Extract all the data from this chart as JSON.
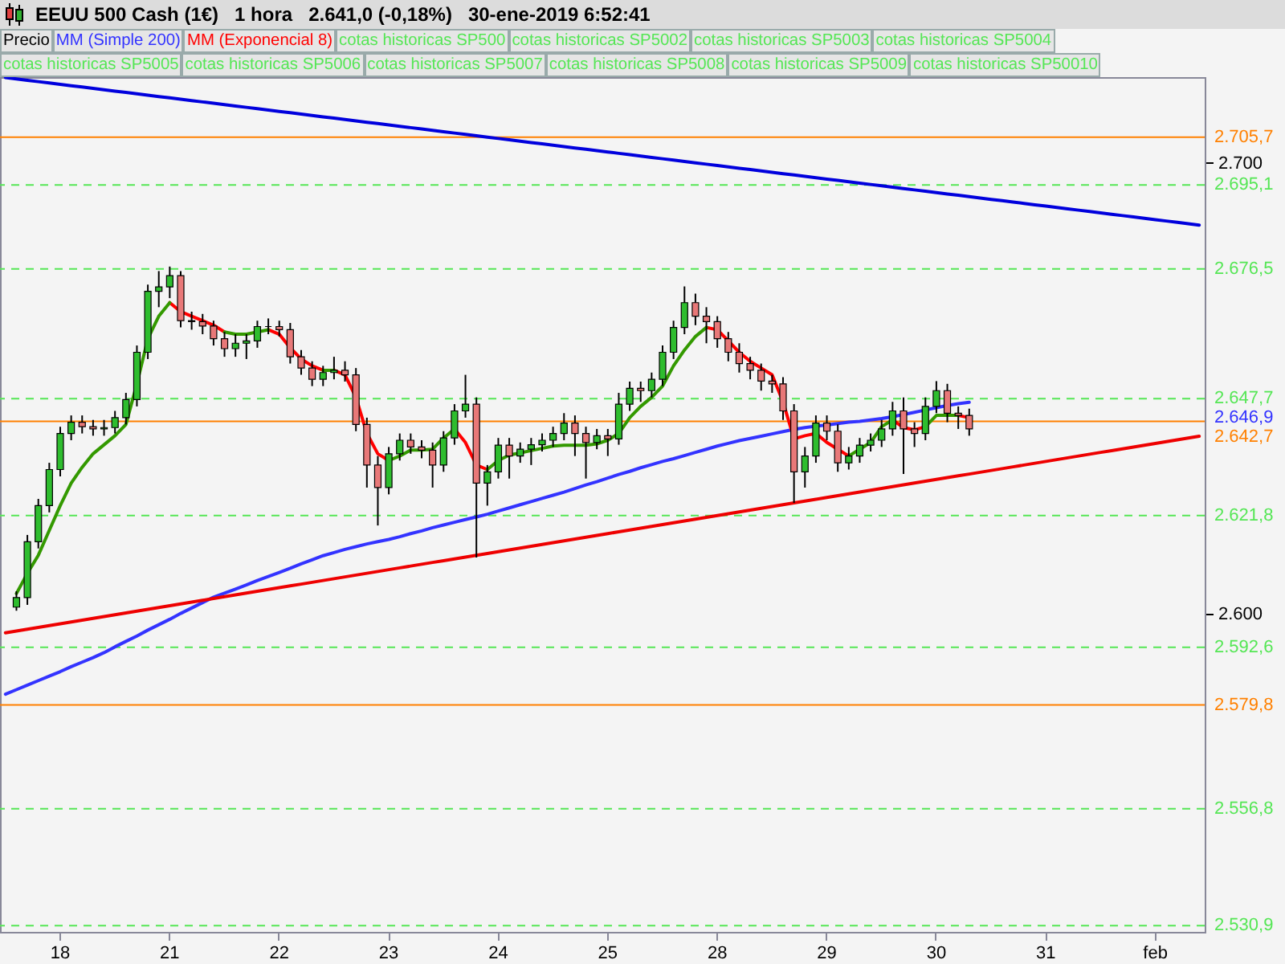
{
  "chart_data": {
    "type": "candlestick",
    "title": "EEUU 500 Cash (1€)",
    "subtitle": "1 hora   2.641,0 (-0,18%)   30-ene-2019 6:52:41",
    "categories": [
      null,
      null,
      null,
      null,
      null,
      "18",
      null,
      null,
      null,
      null,
      null,
      null,
      null,
      null,
      null,
      "21",
      null,
      null,
      null,
      null,
      null,
      null,
      null,
      null,
      null,
      "22",
      null,
      null,
      null,
      null,
      null,
      null,
      null,
      null,
      null,
      "23",
      null,
      null,
      null,
      null,
      null,
      null,
      null,
      null,
      null,
      "24",
      null,
      null,
      null,
      null,
      null,
      null,
      null,
      null,
      null,
      "25",
      null,
      null,
      null,
      null,
      null,
      null,
      null,
      null,
      null,
      "28",
      null,
      null,
      null,
      null,
      null,
      null,
      null,
      null,
      null,
      "29",
      null,
      null,
      null,
      null,
      null,
      null,
      null,
      null,
      null,
      "30",
      null,
      null,
      null,
      null,
      null,
      null,
      null,
      null,
      null,
      "31",
      null,
      null,
      null,
      null,
      null,
      null,
      null,
      null,
      null,
      "feb",
      null,
      null,
      null,
      null
    ],
    "ylim": [
      2529.5,
      2719
    ],
    "yticks": [
      {
        "value": 2600,
        "label": "2.600"
      },
      {
        "value": 2700,
        "label": "2.700"
      }
    ],
    "grid": false,
    "legend": "top left",
    "series": [
      {
        "name": "Precio",
        "color": "#000000",
        "ohlc": [
          null,
          [
            2601.5,
            2605,
            2600.7,
            2603.6
          ],
          [
            2603.6,
            2617.5,
            2602,
            2616
          ],
          [
            2616,
            2625.5,
            2614.5,
            2624
          ],
          [
            2624,
            2633.5,
            2622.5,
            2632
          ],
          [
            2632,
            2641.5,
            2630.5,
            2640
          ],
          [
            2640,
            2644,
            2638.5,
            2642.5
          ],
          [
            2642.5,
            2644,
            2640,
            2641.5
          ],
          [
            2641.5,
            2643,
            2639.5,
            2641
          ],
          [
            2641,
            2643,
            2639.5,
            2641.3
          ],
          [
            2641.3,
            2645,
            2640,
            2643.5
          ],
          [
            2643.5,
            2649,
            2642,
            2647.5
          ],
          [
            2647.5,
            2659.5,
            2646,
            2658
          ],
          [
            2658,
            2673,
            2656.5,
            2671.5
          ],
          [
            2671.5,
            2676,
            2668,
            2672.5
          ],
          [
            2672.5,
            2677,
            2670,
            2675
          ],
          [
            2675,
            2676,
            2663.5,
            2665
          ],
          [
            2665,
            2667,
            2663,
            2664.8
          ],
          [
            2664.8,
            2666.5,
            2662,
            2663.8
          ],
          [
            2663.8,
            2665,
            2659.5,
            2661
          ],
          [
            2661,
            2662.5,
            2657,
            2658.8
          ],
          [
            2658.8,
            2662,
            2657,
            2660
          ],
          [
            2660,
            2662,
            2656.5,
            2660.5
          ],
          [
            2660.5,
            2665,
            2659,
            2663.7
          ],
          [
            2663.7,
            2665.5,
            2662,
            2663.7
          ],
          [
            2663.7,
            2665,
            2661.5,
            2663
          ],
          [
            2663,
            2664.5,
            2655.5,
            2657
          ],
          [
            2657,
            2658.5,
            2653,
            2654.5
          ],
          [
            2654.5,
            2656,
            2650.5,
            2652
          ],
          [
            2652,
            2655,
            2650.5,
            2653.5
          ],
          [
            2653.5,
            2657,
            2652,
            2654
          ],
          [
            2654,
            2656,
            2651.5,
            2653
          ],
          [
            2653,
            2654.5,
            2640.5,
            2642
          ],
          [
            2642,
            2643.5,
            2628,
            2633
          ],
          [
            2633,
            2635,
            2619.6,
            2628
          ],
          [
            2628,
            2637,
            2626.5,
            2635.5
          ],
          [
            2635.5,
            2640,
            2634,
            2638.5
          ],
          [
            2638.5,
            2640,
            2635.5,
            2637
          ],
          [
            2637,
            2638.5,
            2634.5,
            2636.3
          ],
          [
            2636.3,
            2638,
            2628,
            2633
          ],
          [
            2633,
            2640.5,
            2631.5,
            2639
          ],
          [
            2639,
            2646.5,
            2637.5,
            2645
          ],
          [
            2645,
            2653,
            2643.5,
            2646.5
          ],
          [
            2646.5,
            2648,
            2612.5,
            2629
          ],
          [
            2629,
            2633,
            2624,
            2631.5
          ],
          [
            2631.5,
            2639,
            2630,
            2637.4
          ],
          [
            2637.4,
            2639,
            2630,
            2635
          ],
          [
            2635,
            2638,
            2633.5,
            2636.5
          ],
          [
            2636.5,
            2639,
            2633,
            2637.5
          ],
          [
            2637.5,
            2640,
            2636,
            2638.5
          ],
          [
            2638.5,
            2641.5,
            2637,
            2640
          ],
          [
            2640,
            2644.5,
            2638.5,
            2642.3
          ],
          [
            2642.3,
            2644,
            2635,
            2640
          ],
          [
            2640,
            2641.5,
            2630,
            2638
          ],
          [
            2638,
            2641,
            2636.5,
            2639.5
          ],
          [
            2639.5,
            2641,
            2635,
            2638.8
          ],
          [
            2638.8,
            2649,
            2637.5,
            2646.5
          ],
          [
            2646.5,
            2651.5,
            2645,
            2650
          ],
          [
            2650,
            2651.5,
            2647,
            2649.5
          ],
          [
            2649.5,
            2653.5,
            2648,
            2652
          ],
          [
            2652,
            2659.5,
            2650.5,
            2658
          ],
          [
            2658,
            2665,
            2656.5,
            2663.5
          ],
          [
            2663.5,
            2672.6,
            2662,
            2669
          ],
          [
            2669,
            2671,
            2664,
            2666
          ],
          [
            2666,
            2668,
            2660,
            2664.8
          ],
          [
            2664.8,
            2666,
            2659,
            2661
          ],
          [
            2661,
            2662.5,
            2656,
            2658
          ],
          [
            2658,
            2660,
            2653.5,
            2655.5
          ],
          [
            2655.5,
            2657,
            2652,
            2654
          ],
          [
            2654,
            2655.5,
            2649.5,
            2651.6
          ],
          [
            2651.6,
            2653,
            2649,
            2651
          ],
          [
            2651,
            2652.5,
            2643,
            2645
          ],
          [
            2645,
            2646.5,
            2624.6,
            2631.5
          ],
          [
            2631.5,
            2637,
            2628,
            2635
          ],
          [
            2635,
            2644,
            2633.5,
            2642.3
          ],
          [
            2642.3,
            2644,
            2638.5,
            2640.5
          ],
          [
            2640.5,
            2642,
            2631.5,
            2633.5
          ],
          [
            2633.5,
            2637,
            2632,
            2635
          ],
          [
            2635,
            2639,
            2633.5,
            2637.4
          ],
          [
            2637.4,
            2640,
            2636,
            2638.5
          ],
          [
            2638.5,
            2643,
            2637,
            2641
          ],
          [
            2641,
            2647,
            2639.5,
            2645
          ],
          [
            2645,
            2648,
            2631,
            2641
          ],
          [
            2641,
            2642.5,
            2637,
            2640
          ],
          [
            2640,
            2648,
            2638.5,
            2646
          ],
          [
            2646,
            2651.6,
            2644.5,
            2649.5
          ],
          [
            2649.5,
            2651,
            2642.5,
            2644.5
          ],
          [
            2644.5,
            2646,
            2641,
            2644
          ],
          [
            2644,
            2645.5,
            2639.5,
            2641
          ],
          null,
          null,
          null,
          null,
          null,
          null,
          null,
          null,
          null,
          null,
          null,
          null,
          null,
          null,
          null,
          null,
          null,
          null,
          null,
          null,
          null
        ]
      },
      {
        "name": "MM (Simple 200)",
        "type": "line",
        "color": "#3333ff",
        "values": [
          2582.2,
          2583.2,
          2584.2,
          2585.2,
          2586.2,
          2587.2,
          2588.3,
          2589.3,
          2590.3,
          2591.4,
          2592.7,
          2593.9,
          2595.1,
          2596.4,
          2597.6,
          2598.8,
          2600.1,
          2601.3,
          2602.5,
          2603.7,
          2604.6,
          2605.5,
          2606.4,
          2607.4,
          2608.3,
          2609.2,
          2610.1,
          2611.1,
          2612,
          2612.9,
          2613.6,
          2614.3,
          2614.9,
          2615.5,
          2616,
          2616.5,
          2617.1,
          2617.8,
          2618.4,
          2619.1,
          2619.7,
          2620.3,
          2620.9,
          2621.5,
          2622.1,
          2622.8,
          2623.5,
          2624.2,
          2624.9,
          2625.6,
          2626.3,
          2627,
          2627.8,
          2628.6,
          2629.3,
          2630.1,
          2630.9,
          2631.6,
          2632.4,
          2633.1,
          2633.8,
          2634.4,
          2635.1,
          2635.8,
          2636.5,
          2637.2,
          2637.8,
          2638.4,
          2638.9,
          2639.4,
          2639.9,
          2640.4,
          2640.9,
          2641.3,
          2641.6,
          2641.9,
          2642.2,
          2642.5,
          2642.7,
          2643,
          2643.3,
          2643.7,
          2644.2,
          2644.7,
          2645.2,
          2645.7,
          2646.2,
          2646.6,
          2646.9,
          null,
          null,
          null,
          null,
          null,
          null,
          null,
          null,
          null,
          null,
          null,
          null,
          null,
          null,
          null,
          null,
          null,
          null,
          null,
          null,
          null
        ]
      },
      {
        "name": "MM (Exponencial 8)",
        "type": "line",
        "color": "#ff0000",
        "values": [
          null,
          null,
          null,
          null,
          null,
          null,
          null,
          null,
          null,
          null,
          null,
          null,
          null,
          null,
          null,
          2669,
          2667,
          2666,
          2665,
          2664,
          2662.5,
          null,
          null,
          null,
          2663,
          2662,
          2659,
          2656.5,
          2655,
          2654,
          2654,
          2653,
          2648,
          2640,
          2635.5,
          2634,
          null,
          null,
          null,
          null,
          null,
          2641,
          2638,
          2633,
          2632,
          null,
          null,
          null,
          null,
          null,
          null,
          null,
          null,
          null,
          null,
          null,
          null,
          null,
          null,
          null,
          null,
          null,
          null,
          null,
          2663.5,
          2663,
          2660.5,
          2658,
          2656,
          2654.5,
          2653,
          2647,
          2638.8,
          2639.5,
          2640,
          2638,
          2636.5,
          2635,
          null,
          null,
          null,
          2643,
          2641.3,
          2640.8,
          2641.5,
          null,
          null,
          2644,
          2643.5,
          null,
          null,
          null,
          null,
          null,
          null,
          null,
          null,
          null,
          null,
          null,
          null,
          null,
          null,
          null,
          null,
          null,
          null,
          null,
          null,
          null
        ]
      },
      {
        "type": "line",
        "color": "#339900",
        "values": [
          null,
          2604.5,
          2609,
          2613,
          2618.5,
          2624,
          2629,
          2632.5,
          2635.5,
          2637.5,
          2639.5,
          2642,
          2651,
          2661,
          2666,
          2669,
          null,
          null,
          null,
          null,
          2662.5,
          2662,
          2662,
          2662.5,
          2663,
          null,
          null,
          null,
          null,
          2654,
          2654,
          null,
          null,
          null,
          null,
          2634,
          2635,
          2636.3,
          2636.3,
          2636.5,
          2639,
          2641,
          null,
          null,
          2632,
          2634,
          2635.2,
          2635.7,
          2636.2,
          2636.7,
          2637.2,
          2637.4,
          2637.4,
          2637.4,
          2637.7,
          2638.5,
          2640,
          2643.5,
          2646,
          2648,
          2650.5,
          2655,
          2658.5,
          2661.5,
          2663.5,
          null,
          null,
          null,
          null,
          null,
          null,
          null,
          null,
          null,
          null,
          null,
          null,
          2635,
          2636.5,
          2638,
          2641.5,
          2643,
          null,
          null,
          2641.5,
          2644,
          2644,
          2644,
          null,
          null,
          null,
          null,
          null,
          null,
          null,
          null,
          null,
          null,
          null,
          null,
          null,
          null,
          null,
          null,
          null,
          null,
          null,
          null,
          null,
          null
        ]
      },
      {
        "type": "line",
        "color": "#0000dd",
        "values": [
          2718.9,
          2718.6,
          2718.3,
          2718,
          2717.7,
          2717.4,
          2717.1,
          2716.8,
          2716.5,
          2716.2,
          2715.9,
          2715.6,
          2715.3,
          2715,
          2714.7,
          2714.4,
          2714.1,
          2713.8,
          2713.5,
          2713.2,
          2712.9,
          2712.6,
          2712.3,
          2712,
          2711.7,
          2711.4,
          2711.1,
          2710.8,
          2710.5,
          2710.2,
          2709.9,
          2709.6,
          2709.3,
          2709,
          2708.7,
          2708.4,
          2708.1,
          2707.8,
          2707.5,
          2707.2,
          2706.9,
          2706.6,
          2706.3,
          2706,
          2705.7,
          2705.4,
          2705.1,
          2704.8,
          2704.5,
          2704.2,
          2703.9,
          2703.6,
          2703.3,
          2703,
          2702.7,
          2702.4,
          2702.1,
          2701.8,
          2701.5,
          2701.2,
          2700.9,
          2700.6,
          2700.3,
          2700,
          2699.7,
          2699.4,
          2699.1,
          2698.8,
          2698.5,
          2698.2,
          2697.9,
          2697.6,
          2697.3,
          2697,
          2696.7,
          2696.4,
          2696.1,
          2695.8,
          2695.5,
          2695.2,
          2694.9,
          2694.6,
          2694.3,
          2694,
          2693.7,
          2693.4,
          2693.1,
          2692.8,
          2692.5,
          2692.2,
          2691.9,
          2691.6,
          2691.3,
          2691,
          2690.7,
          2690.4,
          2690.1,
          2689.8,
          2689.5,
          2689.2,
          2688.9,
          2688.6,
          2688.3,
          2688,
          2687.7,
          2687.4,
          2687.1,
          2686.8,
          2686.5,
          2686.2
        ]
      },
      {
        "type": "line",
        "color": "#ee0000",
        "values": [
          2595.8,
          2596.2,
          2596.6,
          2597,
          2597.4,
          2597.8,
          2598.2,
          2598.6,
          2599,
          2599.4,
          2599.8,
          2600.2,
          2600.6,
          2601,
          2601.4,
          2601.8,
          2602.2,
          2602.6,
          2603,
          2603.4,
          2603.8,
          2604.2,
          2604.6,
          2605,
          2605.4,
          2605.8,
          2606.2,
          2606.6,
          2607,
          2607.4,
          2607.8,
          2608.2,
          2608.6,
          2609,
          2609.4,
          2609.8,
          2610.2,
          2610.6,
          2611,
          2611.4,
          2611.8,
          2612.2,
          2612.6,
          2613,
          2613.4,
          2613.8,
          2614.2,
          2614.6,
          2615,
          2615.4,
          2615.8,
          2616.2,
          2616.6,
          2617,
          2617.4,
          2617.8,
          2618.2,
          2618.6,
          2619,
          2619.4,
          2619.8,
          2620.2,
          2620.6,
          2621,
          2621.4,
          2621.8,
          2622.2,
          2622.6,
          2623,
          2623.4,
          2623.8,
          2624.2,
          2624.6,
          2625,
          2625.4,
          2625.8,
          2626.2,
          2626.6,
          2627,
          2627.4,
          2627.8,
          2628.2,
          2628.6,
          2629,
          2629.4,
          2629.8,
          2630.2,
          2630.6,
          2631,
          2631.4,
          2631.8,
          2632.2,
          2632.6,
          2633,
          2633.4,
          2633.8,
          2634.2,
          2634.6,
          2635,
          2635.4,
          2635.8,
          2636.2,
          2636.6,
          2637,
          2637.4,
          2637.8,
          2638.2,
          2638.6,
          2639,
          2639.4
        ]
      }
    ],
    "ref_lines": [
      {
        "axis": "y",
        "value": 2705.7,
        "label": "2.705,7",
        "color": "#ff8000",
        "line_style": "solid"
      },
      {
        "axis": "y",
        "value": 2695.1,
        "label": "2.695,1",
        "color": "#55e655",
        "line_style": "dashed"
      },
      {
        "axis": "y",
        "value": 2676.5,
        "label": "2.676,5",
        "color": "#55e655",
        "line_style": "dashed"
      },
      {
        "axis": "y",
        "value": 2647.7,
        "label": "2.647,7",
        "color": "#55e655",
        "line_style": "dashed"
      },
      {
        "axis": "y",
        "value": 2642.7,
        "label": "2.642,7",
        "color": "#ff8000",
        "line_style": "solid"
      },
      {
        "axis": "y",
        "value": 2621.8,
        "label": "2.621,8",
        "color": "#55e655",
        "line_style": "dashed"
      },
      {
        "axis": "y",
        "value": 2592.6,
        "label": "2.592,6",
        "color": "#55e655",
        "line_style": "dashed"
      },
      {
        "axis": "y",
        "value": 2579.8,
        "label": "2.579,8",
        "color": "#ff8000",
        "line_style": "solid"
      },
      {
        "axis": "y",
        "value": 2556.8,
        "label": "2.556,8",
        "color": "#55e655",
        "line_style": "dashed"
      },
      {
        "axis": "y",
        "value": 2530.9,
        "label": "2.530,9",
        "color": "#55e655",
        "line_style": "dashed"
      }
    ],
    "annotations": [
      "2.646,9",
      "cotas historicas SP500",
      "cotas historicas SP5002",
      "cotas historicas SP5003",
      "cotas historicas SP5004",
      "cotas historicas SP5005",
      "cotas historicas SP5006",
      "cotas historicas SP5007",
      "cotas historicas SP5008",
      "cotas historicas SP5009",
      "cotas historicas SP50010"
    ]
  }
}
